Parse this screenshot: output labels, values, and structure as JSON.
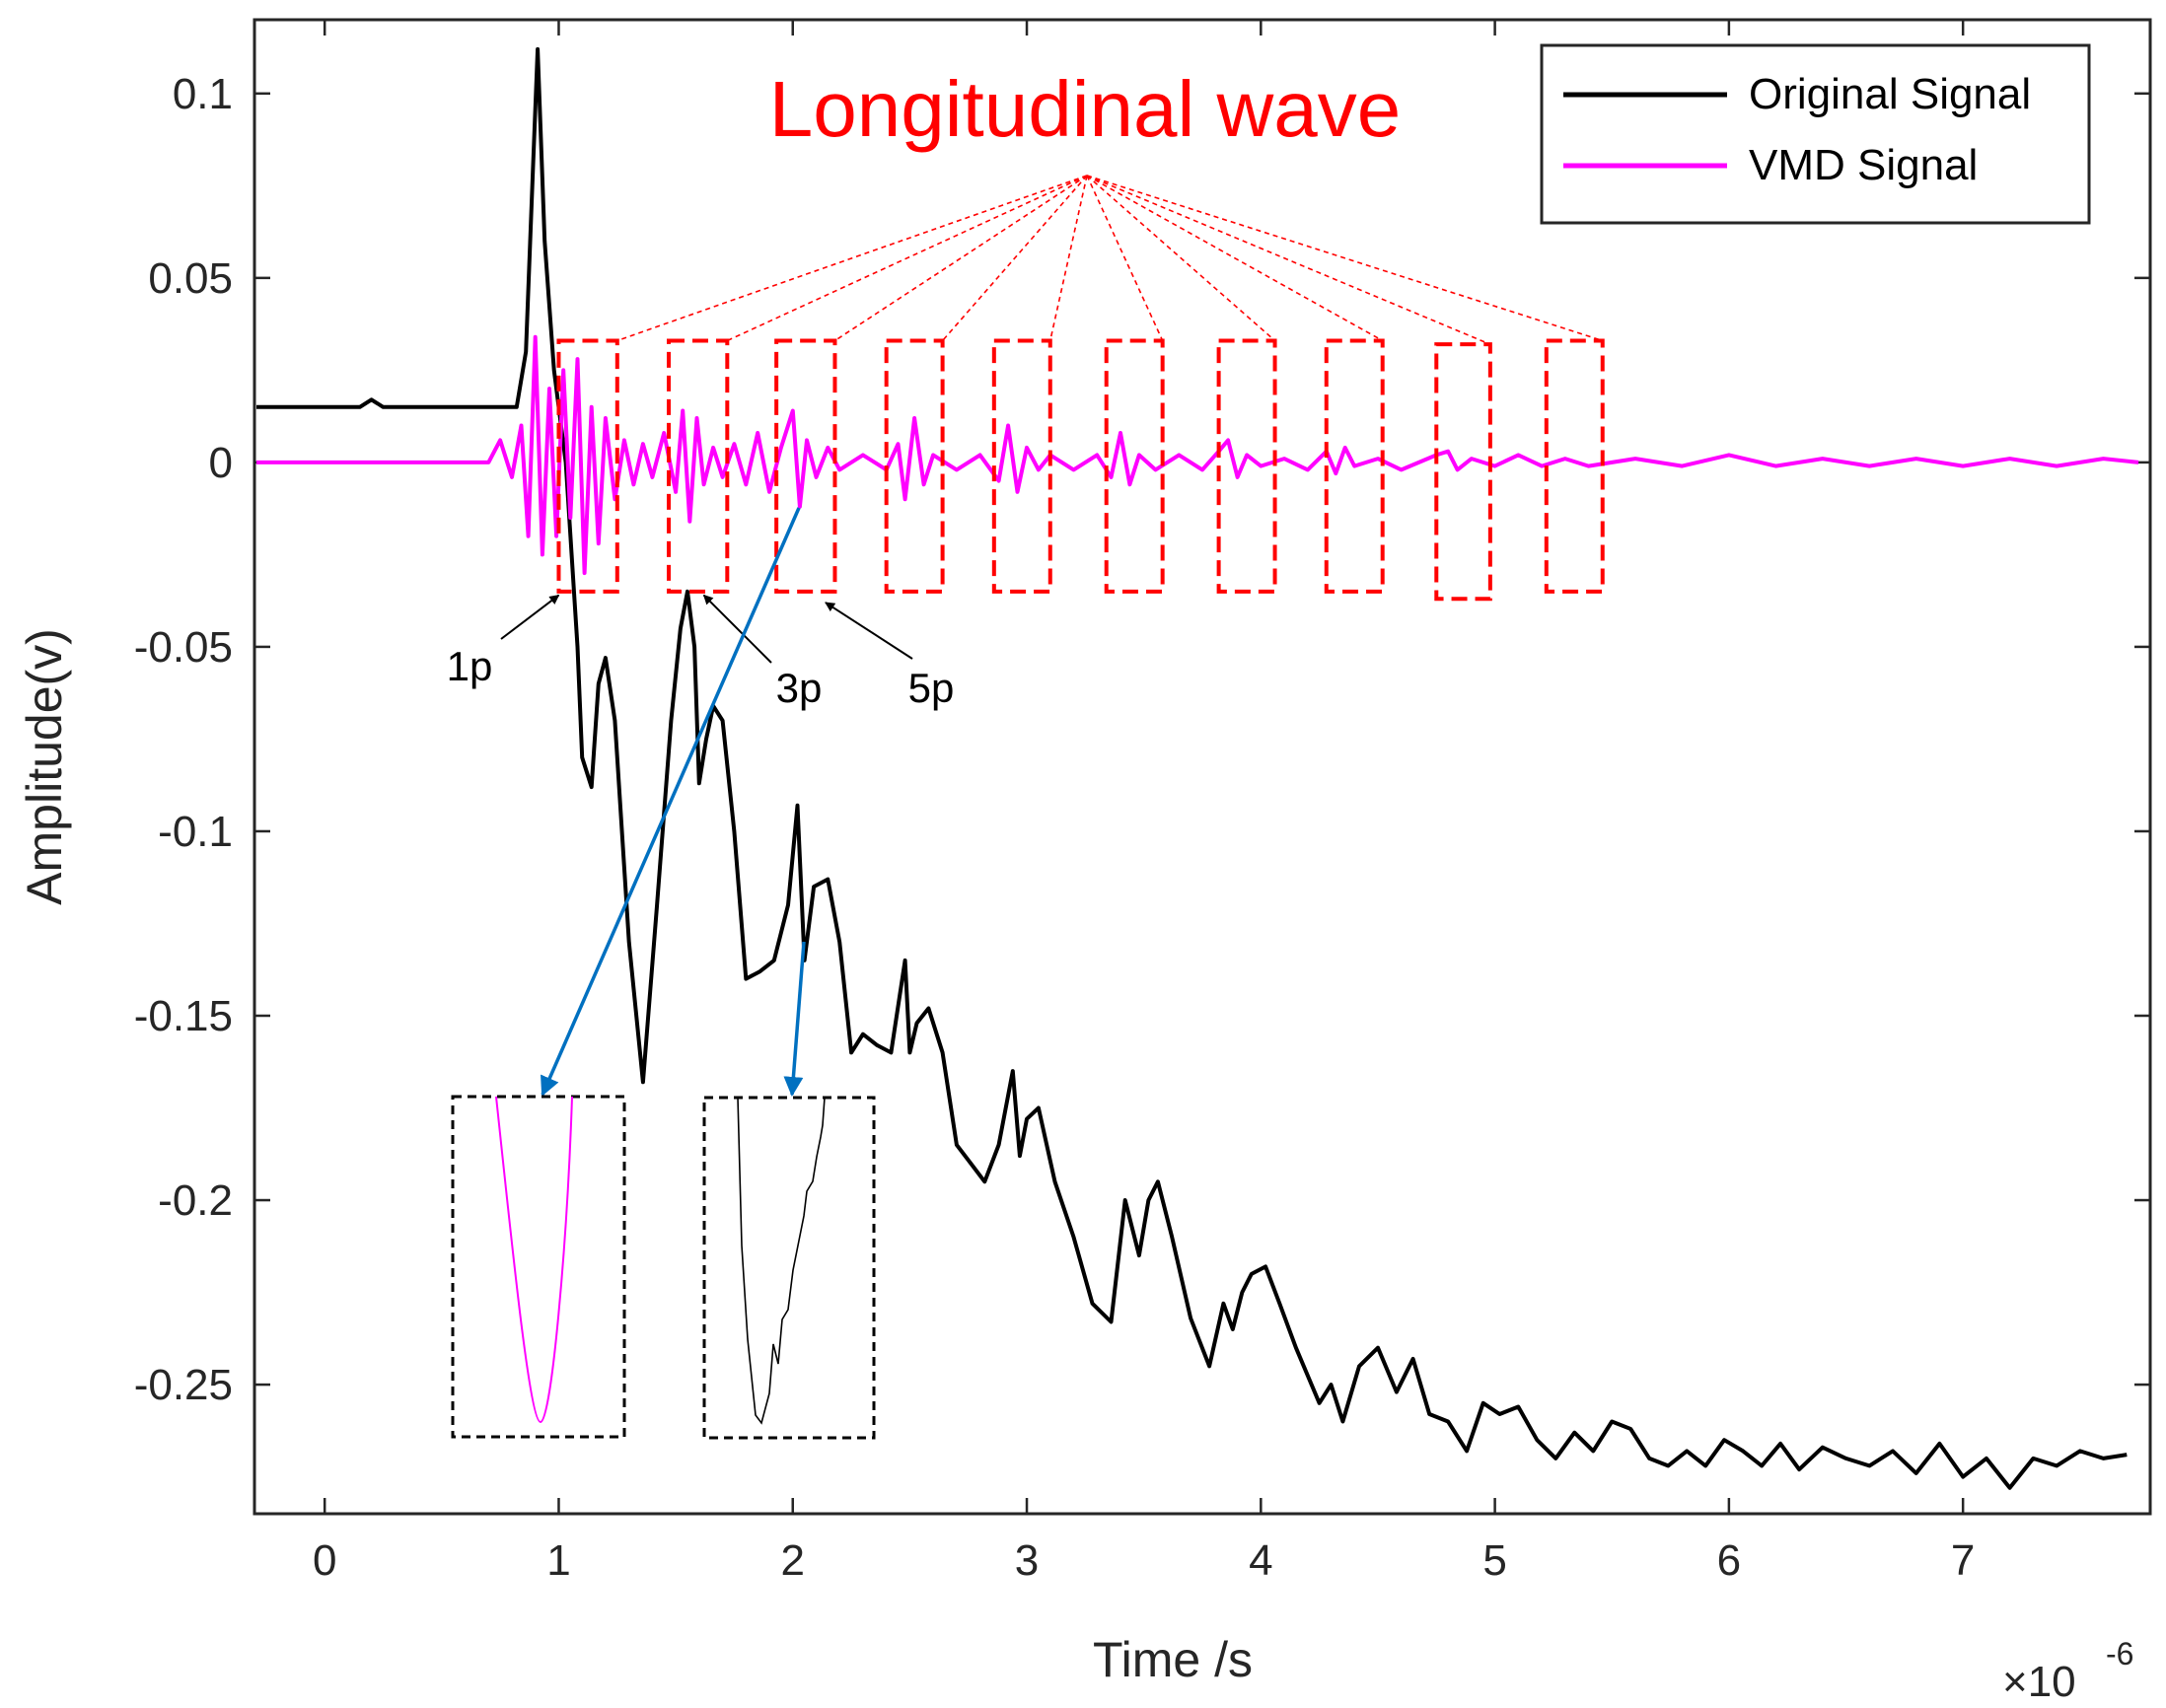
{
  "chart_data": {
    "type": "line",
    "title": "",
    "xlabel": "Time /s",
    "ylabel": "Amplitude(v)",
    "x_exponent": "×10",
    "x_exponent_power": "-6",
    "xlim": [
      -0.3,
      7.8
    ],
    "ylim": [
      -0.285,
      0.12
    ],
    "x_ticks": [
      0,
      1,
      2,
      3,
      4,
      5,
      6,
      7
    ],
    "x_tick_labels": [
      "0",
      "1",
      "2",
      "3",
      "4",
      "5",
      "6",
      "7"
    ],
    "y_ticks": [
      0.1,
      0.05,
      0,
      -0.05,
      -0.1,
      -0.15,
      -0.2,
      -0.25
    ],
    "y_tick_labels": [
      "0.1",
      "0.05",
      "0",
      "-0.05",
      "-0.1",
      "-0.15",
      "-0.2",
      "-0.25"
    ],
    "legend": {
      "position": "top-right",
      "entries": [
        {
          "name": "Original Signal",
          "color": "#000000"
        },
        {
          "name": "VMD Signal",
          "color": "#ff00ff"
        }
      ]
    },
    "series": [
      {
        "name": "Original Signal",
        "color": "#000000",
        "x": [
          -0.4,
          0.15,
          0.2,
          0.25,
          0.82,
          0.86,
          0.89,
          0.91,
          0.94,
          0.98,
          1.03,
          1.08,
          1.1,
          1.14,
          1.17,
          1.2,
          1.24,
          1.3,
          1.36,
          1.42,
          1.48,
          1.52,
          1.55,
          1.58,
          1.6,
          1.63,
          1.66,
          1.7,
          1.75,
          1.8,
          1.86,
          1.92,
          1.98,
          2.02,
          2.05,
          2.09,
          2.15,
          2.2,
          2.25,
          2.3,
          2.36,
          2.42,
          2.48,
          2.5,
          2.53,
          2.58,
          2.64,
          2.7,
          2.76,
          2.82,
          2.88,
          2.94,
          2.97,
          3.0,
          3.05,
          3.12,
          3.2,
          3.28,
          3.36,
          3.42,
          3.48,
          3.52,
          3.56,
          3.62,
          3.7,
          3.78,
          3.84,
          3.88,
          3.92,
          3.96,
          4.02,
          4.08,
          4.15,
          4.25,
          4.3,
          4.35,
          4.42,
          4.5,
          4.58,
          4.65,
          4.72,
          4.8,
          4.88,
          4.95,
          5.02,
          5.1,
          5.18,
          5.26,
          5.34,
          5.42,
          5.5,
          5.58,
          5.66,
          5.74,
          5.82,
          5.9,
          5.98,
          6.06,
          6.14,
          6.22,
          6.3,
          6.4,
          6.5,
          6.6,
          6.7,
          6.8,
          6.9,
          7.0,
          7.1,
          7.2,
          7.3,
          7.4,
          7.5,
          7.6,
          7.7
        ],
        "y": [
          0.015,
          0.015,
          0.017,
          0.015,
          0.015,
          0.03,
          0.08,
          0.112,
          0.06,
          0.025,
          0.0,
          -0.05,
          -0.08,
          -0.088,
          -0.06,
          -0.053,
          -0.07,
          -0.13,
          -0.168,
          -0.12,
          -0.07,
          -0.045,
          -0.035,
          -0.05,
          -0.087,
          -0.075,
          -0.066,
          -0.07,
          -0.1,
          -0.14,
          -0.138,
          -0.135,
          -0.12,
          -0.093,
          -0.135,
          -0.115,
          -0.113,
          -0.13,
          -0.16,
          -0.155,
          -0.158,
          -0.16,
          -0.135,
          -0.16,
          -0.152,
          -0.148,
          -0.16,
          -0.185,
          -0.19,
          -0.195,
          -0.185,
          -0.165,
          -0.188,
          -0.178,
          -0.175,
          -0.195,
          -0.21,
          -0.228,
          -0.233,
          -0.2,
          -0.215,
          -0.2,
          -0.195,
          -0.21,
          -0.232,
          -0.245,
          -0.228,
          -0.235,
          -0.225,
          -0.22,
          -0.218,
          -0.228,
          -0.24,
          -0.255,
          -0.25,
          -0.26,
          -0.245,
          -0.24,
          -0.252,
          -0.243,
          -0.258,
          -0.26,
          -0.268,
          -0.255,
          -0.258,
          -0.256,
          -0.265,
          -0.27,
          -0.263,
          -0.268,
          -0.26,
          -0.262,
          -0.27,
          -0.272,
          -0.268,
          -0.272,
          -0.265,
          -0.268,
          -0.272,
          -0.266,
          -0.273,
          -0.267,
          -0.27,
          -0.272,
          -0.268,
          -0.274,
          -0.266,
          -0.275,
          -0.27,
          -0.278,
          -0.27,
          -0.272,
          -0.268,
          -0.27,
          -0.269
        ]
      },
      {
        "name": "VMD Signal",
        "color": "#ff00ff",
        "x": [
          -0.4,
          0.7,
          0.75,
          0.8,
          0.84,
          0.87,
          0.9,
          0.93,
          0.96,
          0.99,
          1.02,
          1.05,
          1.08,
          1.11,
          1.14,
          1.17,
          1.2,
          1.24,
          1.28,
          1.32,
          1.36,
          1.4,
          1.45,
          1.5,
          1.53,
          1.56,
          1.59,
          1.62,
          1.66,
          1.7,
          1.75,
          1.8,
          1.85,
          1.9,
          1.95,
          2.0,
          2.03,
          2.06,
          2.1,
          2.15,
          2.2,
          2.3,
          2.4,
          2.45,
          2.48,
          2.52,
          2.56,
          2.6,
          2.7,
          2.8,
          2.88,
          2.92,
          2.96,
          3.0,
          3.05,
          3.1,
          3.2,
          3.3,
          3.36,
          3.4,
          3.44,
          3.48,
          3.55,
          3.65,
          3.75,
          3.82,
          3.86,
          3.9,
          3.94,
          4.0,
          4.1,
          4.2,
          4.28,
          4.32,
          4.36,
          4.4,
          4.5,
          4.6,
          4.75,
          4.8,
          4.84,
          4.9,
          5.0,
          5.1,
          5.2,
          5.3,
          5.4,
          5.6,
          5.8,
          6.0,
          6.2,
          6.4,
          6.6,
          6.8,
          7.0,
          7.2,
          7.4,
          7.6,
          7.75
        ],
        "y": [
          0.0,
          0.0,
          0.006,
          -0.004,
          0.01,
          -0.02,
          0.034,
          -0.025,
          0.02,
          -0.02,
          0.025,
          -0.015,
          0.028,
          -0.03,
          0.015,
          -0.022,
          0.012,
          -0.01,
          0.006,
          -0.006,
          0.005,
          -0.004,
          0.008,
          -0.008,
          0.014,
          -0.016,
          0.012,
          -0.006,
          0.004,
          -0.004,
          0.005,
          -0.006,
          0.008,
          -0.008,
          0.004,
          0.014,
          -0.012,
          0.006,
          -0.004,
          0.004,
          -0.002,
          0.002,
          -0.002,
          0.005,
          -0.01,
          0.012,
          -0.006,
          0.002,
          -0.002,
          0.002,
          -0.005,
          0.01,
          -0.008,
          0.004,
          -0.002,
          0.002,
          -0.002,
          0.002,
          -0.004,
          0.008,
          -0.006,
          0.002,
          -0.002,
          0.002,
          -0.002,
          0.003,
          0.006,
          -0.004,
          0.002,
          -0.001,
          0.001,
          -0.002,
          0.003,
          -0.003,
          0.004,
          -0.001,
          0.001,
          -0.002,
          0.002,
          0.003,
          -0.002,
          0.001,
          -0.001,
          0.002,
          -0.001,
          0.001,
          -0.001,
          0.001,
          -0.001,
          0.002,
          -0.001,
          0.001,
          -0.001,
          0.001,
          -0.001,
          0.001,
          -0.001,
          0.001,
          0.0
        ]
      }
    ],
    "annotations": {
      "wave_label": "Longitudinal wave",
      "wave_label_color": "#ff0000",
      "box_color": "#ff0000",
      "arrow_color": "#0070c0",
      "reflection_boxes_x_start": [
        1.0,
        1.47,
        1.93,
        2.4,
        2.86,
        3.34,
        3.82,
        4.28,
        4.75,
        5.22
      ],
      "reflection_boxes_x_end": [
        1.25,
        1.72,
        2.18,
        2.64,
        3.1,
        3.58,
        4.06,
        4.52,
        4.98,
        5.46
      ],
      "reflection_box_y_range": [
        -0.035,
        0.033
      ],
      "reflection_box_extra_y_range": [
        -0.037,
        0.032
      ],
      "reflection_box_extra_index": 8,
      "peak_labels": [
        {
          "text": "1p",
          "color": "#000000"
        },
        {
          "text": "3p",
          "color": "#000000"
        },
        {
          "text": "5p",
          "color": "#000000"
        }
      ],
      "inset_boxes": [
        {
          "name": "vmd-zoom",
          "color": "#ff00ff"
        },
        {
          "name": "original-zoom",
          "color": "#000000"
        }
      ]
    }
  }
}
